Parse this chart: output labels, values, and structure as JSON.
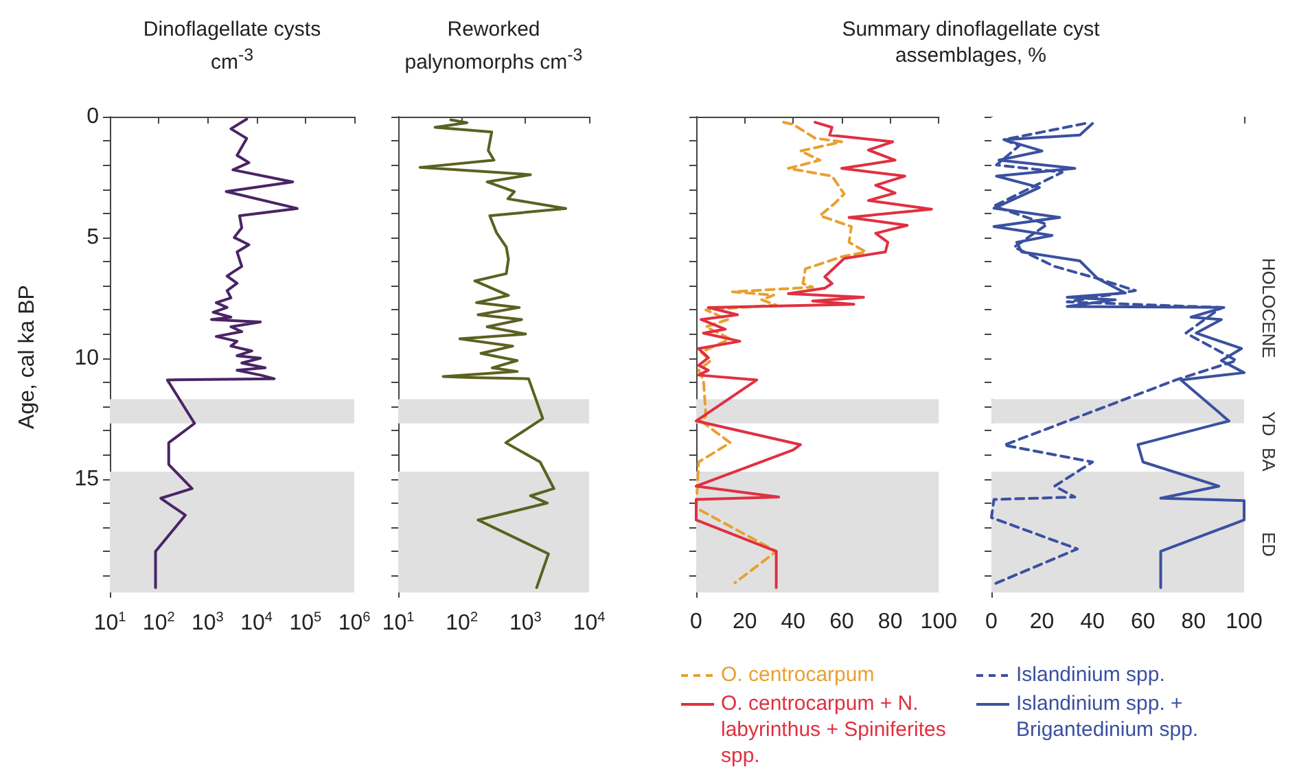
{
  "chart_data": [
    {
      "type": "line",
      "title": "Dinoflagellate cysts cm$^{-3}$",
      "ylabel": "Age, cal ka BP",
      "log": "x",
      "xlim": [
        10,
        1000000
      ],
      "xticks": [
        {
          "value": 10,
          "label": "10$^{1}$"
        },
        {
          "value": 100,
          "label": "10$^{2}$"
        },
        {
          "value": 1000,
          "label": "10$^{3}$"
        },
        {
          "value": 10000,
          "label": "10$^{4}$"
        },
        {
          "value": 100000,
          "label": "10$^{5}$"
        },
        {
          "value": 1000000,
          "label": "10$^{6}$"
        }
      ],
      "ylim": [
        19.9,
        0
      ],
      "yticks": [
        0,
        {
          "value": 1,
          "label": null
        },
        {
          "value": 2,
          "label": null
        },
        {
          "value": 3,
          "label": null
        },
        {
          "value": 4,
          "label": null
        },
        5,
        {
          "value": 6,
          "label": null
        },
        {
          "value": 7,
          "label": null
        },
        {
          "value": 8,
          "label": null
        },
        {
          "value": 9,
          "label": null
        },
        10,
        {
          "value": 11,
          "label": null
        },
        {
          "value": 12,
          "label": null
        },
        {
          "value": 13,
          "label": null
        },
        {
          "value": 14,
          "label": null
        },
        15,
        {
          "value": 16,
          "label": null
        },
        {
          "value": 17,
          "label": null
        },
        {
          "value": 18,
          "label": null
        },
        {
          "value": 19,
          "label": null
        }
      ],
      "grid": false,
      "legend": false,
      "bands": [
        {
          "axis": "y",
          "from": 11.7,
          "to": 12.7,
          "color": "#e0e0e0"
        },
        {
          "axis": "y",
          "from": 14.7,
          "to": 19.7,
          "color": "#e0e0e0"
        }
      ],
      "series": [
        {
          "color": "#4a2466",
          "x": [
            6300,
            3000,
            6300,
            4000,
            7000,
            3300,
            55000,
            2400,
            68000,
            4500,
            5000,
            3500,
            7000,
            4000,
            5000,
            3500,
            2500,
            4000,
            2500,
            3000,
            1500,
            2500,
            1300,
            3000,
            1200,
            12000,
            3000,
            5000,
            1500,
            4000,
            3000,
            8000,
            4000,
            12000,
            5000,
            15000,
            4000,
            12000,
            23000,
            150,
            540,
            160,
            160,
            480,
            110,
            350,
            86,
            86
          ],
          "values": [
            0.1,
            0.5,
            0.9,
            1.6,
            1.9,
            2.2,
            2.7,
            3.1,
            3.8,
            4.1,
            4.6,
            5.0,
            5.3,
            5.6,
            6.2,
            6.4,
            6.6,
            6.9,
            7.2,
            7.5,
            7.7,
            7.9,
            8.1,
            8.3,
            8.4,
            8.5,
            8.7,
            8.9,
            9.1,
            9.3,
            9.5,
            9.7,
            9.9,
            10.0,
            10.2,
            10.4,
            10.5,
            10.7,
            10.85,
            10.9,
            12.7,
            13.5,
            14.4,
            15.4,
            15.8,
            16.5,
            18.0,
            19.5
          ]
        }
      ]
    },
    {
      "type": "line",
      "title": "Reworked palynomorphs cm$^{-3}$",
      "log": "x",
      "xlim": [
        10,
        10000
      ],
      "xticks": [
        {
          "value": 10,
          "label": "10$^{1}$"
        },
        {
          "value": 100,
          "label": "10$^{2}$"
        },
        {
          "value": 1000,
          "label": "10$^{3}$"
        },
        {
          "value": 10000,
          "label": "10$^{4}$"
        }
      ],
      "ylim": [
        19.9,
        0
      ],
      "yticks": [
        0,
        {
          "value": 1,
          "label": null
        },
        {
          "value": 2,
          "label": null
        },
        {
          "value": 3,
          "label": null
        },
        {
          "value": 4,
          "label": null
        },
        5,
        {
          "value": 6,
          "label": null
        },
        {
          "value": 7,
          "label": null
        },
        {
          "value": 8,
          "label": null
        },
        {
          "value": 9,
          "label": null
        },
        10,
        {
          "value": 11,
          "label": null
        },
        {
          "value": 12,
          "label": null
        },
        {
          "value": 13,
          "label": null
        },
        {
          "value": 14,
          "label": null
        },
        15,
        {
          "value": 16,
          "label": null
        },
        {
          "value": 17,
          "label": null
        },
        {
          "value": 18,
          "label": null
        },
        {
          "value": 19,
          "label": null
        }
      ],
      "tick_labels": "x",
      "grid": false,
      "legend": false,
      "bands": [
        {
          "axis": "y",
          "from": 11.7,
          "to": 12.7,
          "color": "#e0e0e0"
        },
        {
          "axis": "y",
          "from": 14.7,
          "to": 19.7,
          "color": "#e0e0e0"
        }
      ],
      "series": [
        {
          "color": "#5b6120",
          "x": [
            67,
            120,
            38,
            295,
            260,
            320,
            22,
            1200,
            250,
            670,
            530,
            4300,
            275,
            350,
            500,
            540,
            500,
            160,
            540,
            170,
            800,
            180,
            870,
            250,
            1000,
            93,
            630,
            200,
            740,
            300,
            740,
            51,
            140,
            1120,
            1870,
            490,
            1700,
            2800,
            1200,
            2200,
            180,
            2300,
            1500
          ],
          "values": [
            0.13,
            0.25,
            0.44,
            0.63,
            1.4,
            1.8,
            2.1,
            2.4,
            2.7,
            3.1,
            3.4,
            3.8,
            4.1,
            4.8,
            5.4,
            5.9,
            6.5,
            6.8,
            7.4,
            7.7,
            7.9,
            8.2,
            8.4,
            8.7,
            9.0,
            9.2,
            9.5,
            9.8,
            10.1,
            10.4,
            10.55,
            10.76,
            10.8,
            10.85,
            12.5,
            13.5,
            14.3,
            15.4,
            15.7,
            16.0,
            16.7,
            18.1,
            19.5
          ]
        }
      ]
    },
    {
      "type": "line",
      "title": "Summary dinoflagellate cyst assemblages, %",
      "xlim": [
        0,
        100
      ],
      "xticks": [
        0,
        20,
        40,
        60,
        80,
        100
      ],
      "ylim": [
        19.9,
        0
      ],
      "yticks": [
        0,
        {
          "value": 1,
          "label": null
        },
        {
          "value": 2,
          "label": null
        },
        {
          "value": 3,
          "label": null
        },
        {
          "value": 4,
          "label": null
        },
        5,
        {
          "value": 6,
          "label": null
        },
        {
          "value": 7,
          "label": null
        },
        {
          "value": 8,
          "label": null
        },
        {
          "value": 9,
          "label": null
        },
        10,
        {
          "value": 11,
          "label": null
        },
        {
          "value": 12,
          "label": null
        },
        {
          "value": 13,
          "label": null
        },
        {
          "value": 14,
          "label": null
        },
        15,
        {
          "value": 16,
          "label": null
        },
        {
          "value": 17,
          "label": null
        },
        {
          "value": 18,
          "label": null
        },
        {
          "value": 19,
          "label": null
        }
      ],
      "tick_labels": "x",
      "grid": false,
      "legend": "bottom",
      "bands": [
        {
          "axis": "y",
          "from": 11.7,
          "to": 12.7,
          "color": "#e0e0e0"
        },
        {
          "axis": "y",
          "from": 14.7,
          "to": 19.7,
          "color": "#e0e0e0"
        }
      ],
      "series": [
        {
          "name": "O. centrocarpum",
          "color": "#e8a030",
          "line_style": "dashed",
          "x": [
            36,
            40,
            49,
            60,
            43,
            51,
            38,
            56,
            61,
            57,
            51,
            64,
            63,
            70,
            60,
            45,
            44,
            48,
            15,
            32,
            27,
            33,
            4,
            13,
            4,
            14,
            2,
            6,
            1,
            3,
            4,
            2,
            14,
            1,
            0,
            33,
            16
          ],
          "values": [
            0.23,
            0.32,
            0.89,
            1.04,
            1.42,
            1.8,
            2.14,
            2.46,
            3.2,
            3.6,
            4.1,
            4.55,
            5.2,
            5.6,
            5.8,
            6.3,
            6.91,
            7.06,
            7.25,
            7.39,
            7.58,
            7.8,
            8.0,
            8.4,
            8.7,
            9.2,
            9.75,
            10.1,
            10.5,
            10.9,
            12.4,
            12.6,
            13.5,
            14.3,
            16.2,
            18.0,
            19.3
          ]
        },
        {
          "name": "O. centrocarpum + N. labyrinthus + Spiniferites spp.",
          "color": "#e03040",
          "line_style": "solid",
          "x": [
            49,
            56,
            55,
            81,
            71,
            82,
            60,
            86,
            74,
            82,
            71,
            97,
            63,
            87,
            74,
            79,
            78,
            61,
            53,
            56,
            53,
            38,
            69,
            48,
            65,
            5,
            17,
            2,
            12,
            3,
            18,
            1,
            5,
            1,
            5,
            1,
            25,
            0,
            43,
            40,
            0,
            34,
            0,
            0,
            33,
            33
          ],
          "values": [
            0.23,
            0.44,
            0.76,
            1.04,
            1.38,
            1.8,
            2.14,
            2.46,
            2.84,
            3.16,
            3.47,
            3.83,
            4.17,
            4.5,
            4.83,
            5.2,
            5.6,
            5.87,
            6.63,
            6.91,
            7.1,
            7.33,
            7.48,
            7.63,
            7.77,
            7.9,
            8.2,
            8.4,
            8.8,
            8.96,
            9.3,
            9.6,
            9.98,
            10.3,
            10.5,
            10.7,
            10.9,
            12.6,
            13.58,
            13.8,
            15.3,
            15.75,
            15.85,
            16.7,
            18.0,
            19.5
          ]
        }
      ]
    },
    {
      "type": "line",
      "xlim": [
        0,
        100
      ],
      "xticks": [
        0,
        20,
        40,
        60,
        80,
        100
      ],
      "ylim": [
        19.9,
        0
      ],
      "yticks": [
        0,
        {
          "value": 1,
          "label": null
        },
        {
          "value": 2,
          "label": null
        },
        {
          "value": 3,
          "label": null
        },
        {
          "value": 4,
          "label": null
        },
        5,
        {
          "value": 6,
          "label": null
        },
        {
          "value": 7,
          "label": null
        },
        {
          "value": 8,
          "label": null
        },
        {
          "value": 9,
          "label": null
        },
        10,
        {
          "value": 11,
          "label": null
        },
        {
          "value": 12,
          "label": null
        },
        {
          "value": 13,
          "label": null
        },
        {
          "value": 14,
          "label": null
        },
        15,
        {
          "value": 16,
          "label": null
        },
        {
          "value": 17,
          "label": null
        },
        {
          "value": 18,
          "label": null
        },
        {
          "value": 19,
          "label": null
        }
      ],
      "tick_labels": "x",
      "grid": false,
      "legend": "bottom",
      "bands": [
        {
          "axis": "y",
          "from": 0,
          "to": 11.7,
          "color": "#ffffff",
          "label": "HOLOCENE"
        },
        {
          "axis": "y",
          "from": 11.7,
          "to": 12.7,
          "color": "#e0e0e0",
          "label": "YD"
        },
        {
          "axis": "y",
          "from": 12.7,
          "to": 14.7,
          "color": "#ffffff",
          "label": "BA"
        },
        {
          "axis": "y",
          "from": 14.7,
          "to": 19.7,
          "color": "#e0e0e0",
          "label": "ED"
        }
      ],
      "series": [
        {
          "name": "Islandinium spp.",
          "color": "#3a50a0",
          "line_style": "dashed",
          "x": [
            37,
            5,
            11,
            2,
            28,
            1,
            22,
            9,
            25,
            42,
            57,
            30,
            91,
            77,
            97,
            73,
            5,
            40,
            25,
            33,
            1,
            0,
            34,
            0
          ],
          "values": [
            0.28,
            0.95,
            1.2,
            2.0,
            2.3,
            3.7,
            4.46,
            5.4,
            6.2,
            6.7,
            7.2,
            7.67,
            7.9,
            8.96,
            10.1,
            10.9,
            13.6,
            14.3,
            15.3,
            15.75,
            15.85,
            16.6,
            17.9,
            19.4
          ]
        },
        {
          "name": "Islandinium spp. + Brigantedinium spp.",
          "color": "#3a50a0",
          "line_style": "solid",
          "x": [
            40,
            35,
            5,
            20,
            3,
            33,
            2,
            19,
            1,
            27,
            1,
            24,
            10,
            12,
            35,
            42,
            53,
            30,
            49,
            30,
            92,
            79,
            91,
            81,
            99,
            91,
            100,
            75,
            94,
            58,
            60,
            90,
            67,
            100,
            100,
            67,
            67
          ],
          "values": [
            0.28,
            0.76,
            0.95,
            1.42,
            1.8,
            2.14,
            2.46,
            2.93,
            3.79,
            4.17,
            4.55,
            4.92,
            5.2,
            5.6,
            5.97,
            6.7,
            7.3,
            7.48,
            7.58,
            7.86,
            7.9,
            8.3,
            8.4,
            8.96,
            9.6,
            10.1,
            10.6,
            10.9,
            12.6,
            13.58,
            14.3,
            15.3,
            15.8,
            15.9,
            16.7,
            18.0,
            19.5
          ]
        }
      ]
    }
  ]
}
